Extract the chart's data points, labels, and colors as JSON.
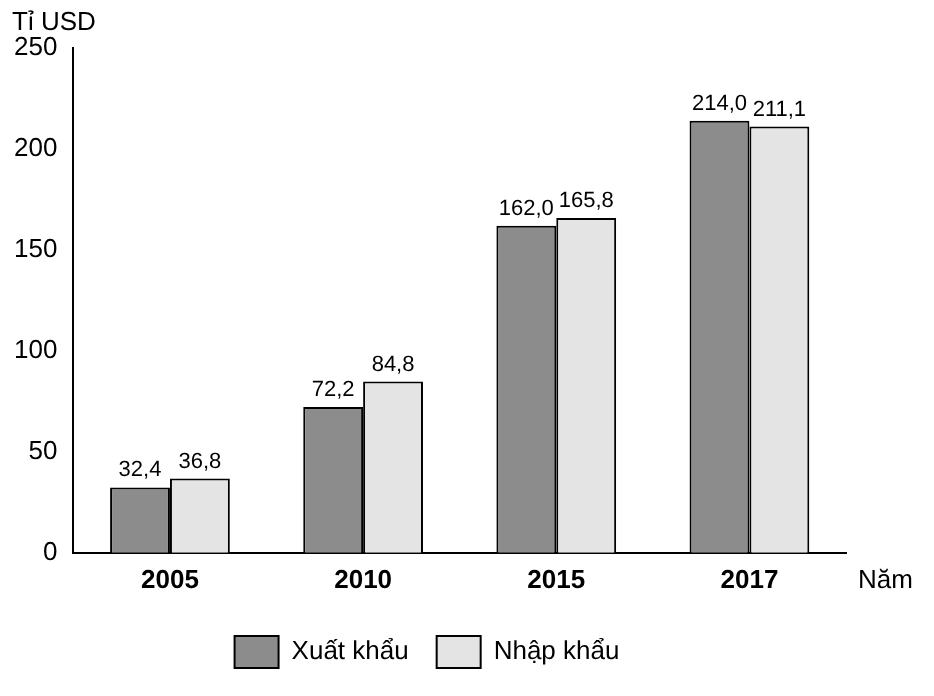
{
  "chart_data": {
    "type": "bar",
    "ylabel": "Tỉ USD",
    "xlabel": "Năm",
    "categories": [
      "2005",
      "2010",
      "2015",
      "2017"
    ],
    "series": [
      {
        "name": "Xuất khẩu",
        "color": "#8c8c8c",
        "values": [
          32.4,
          72.2,
          162.0,
          214.0
        ],
        "value_labels": [
          "32,4",
          "72,2",
          "162,0",
          "214,0"
        ]
      },
      {
        "name": "Nhập khẩu",
        "color": "#e4e4e4",
        "values": [
          36.8,
          84.8,
          165.8,
          211.1
        ],
        "value_labels": [
          "36,8",
          "84,8",
          "165,8",
          "211,1"
        ]
      }
    ],
    "ylim": [
      0,
      250
    ],
    "yticks": [
      0,
      50,
      100,
      150,
      200,
      250
    ],
    "grid": false,
    "legend": "bottom"
  }
}
